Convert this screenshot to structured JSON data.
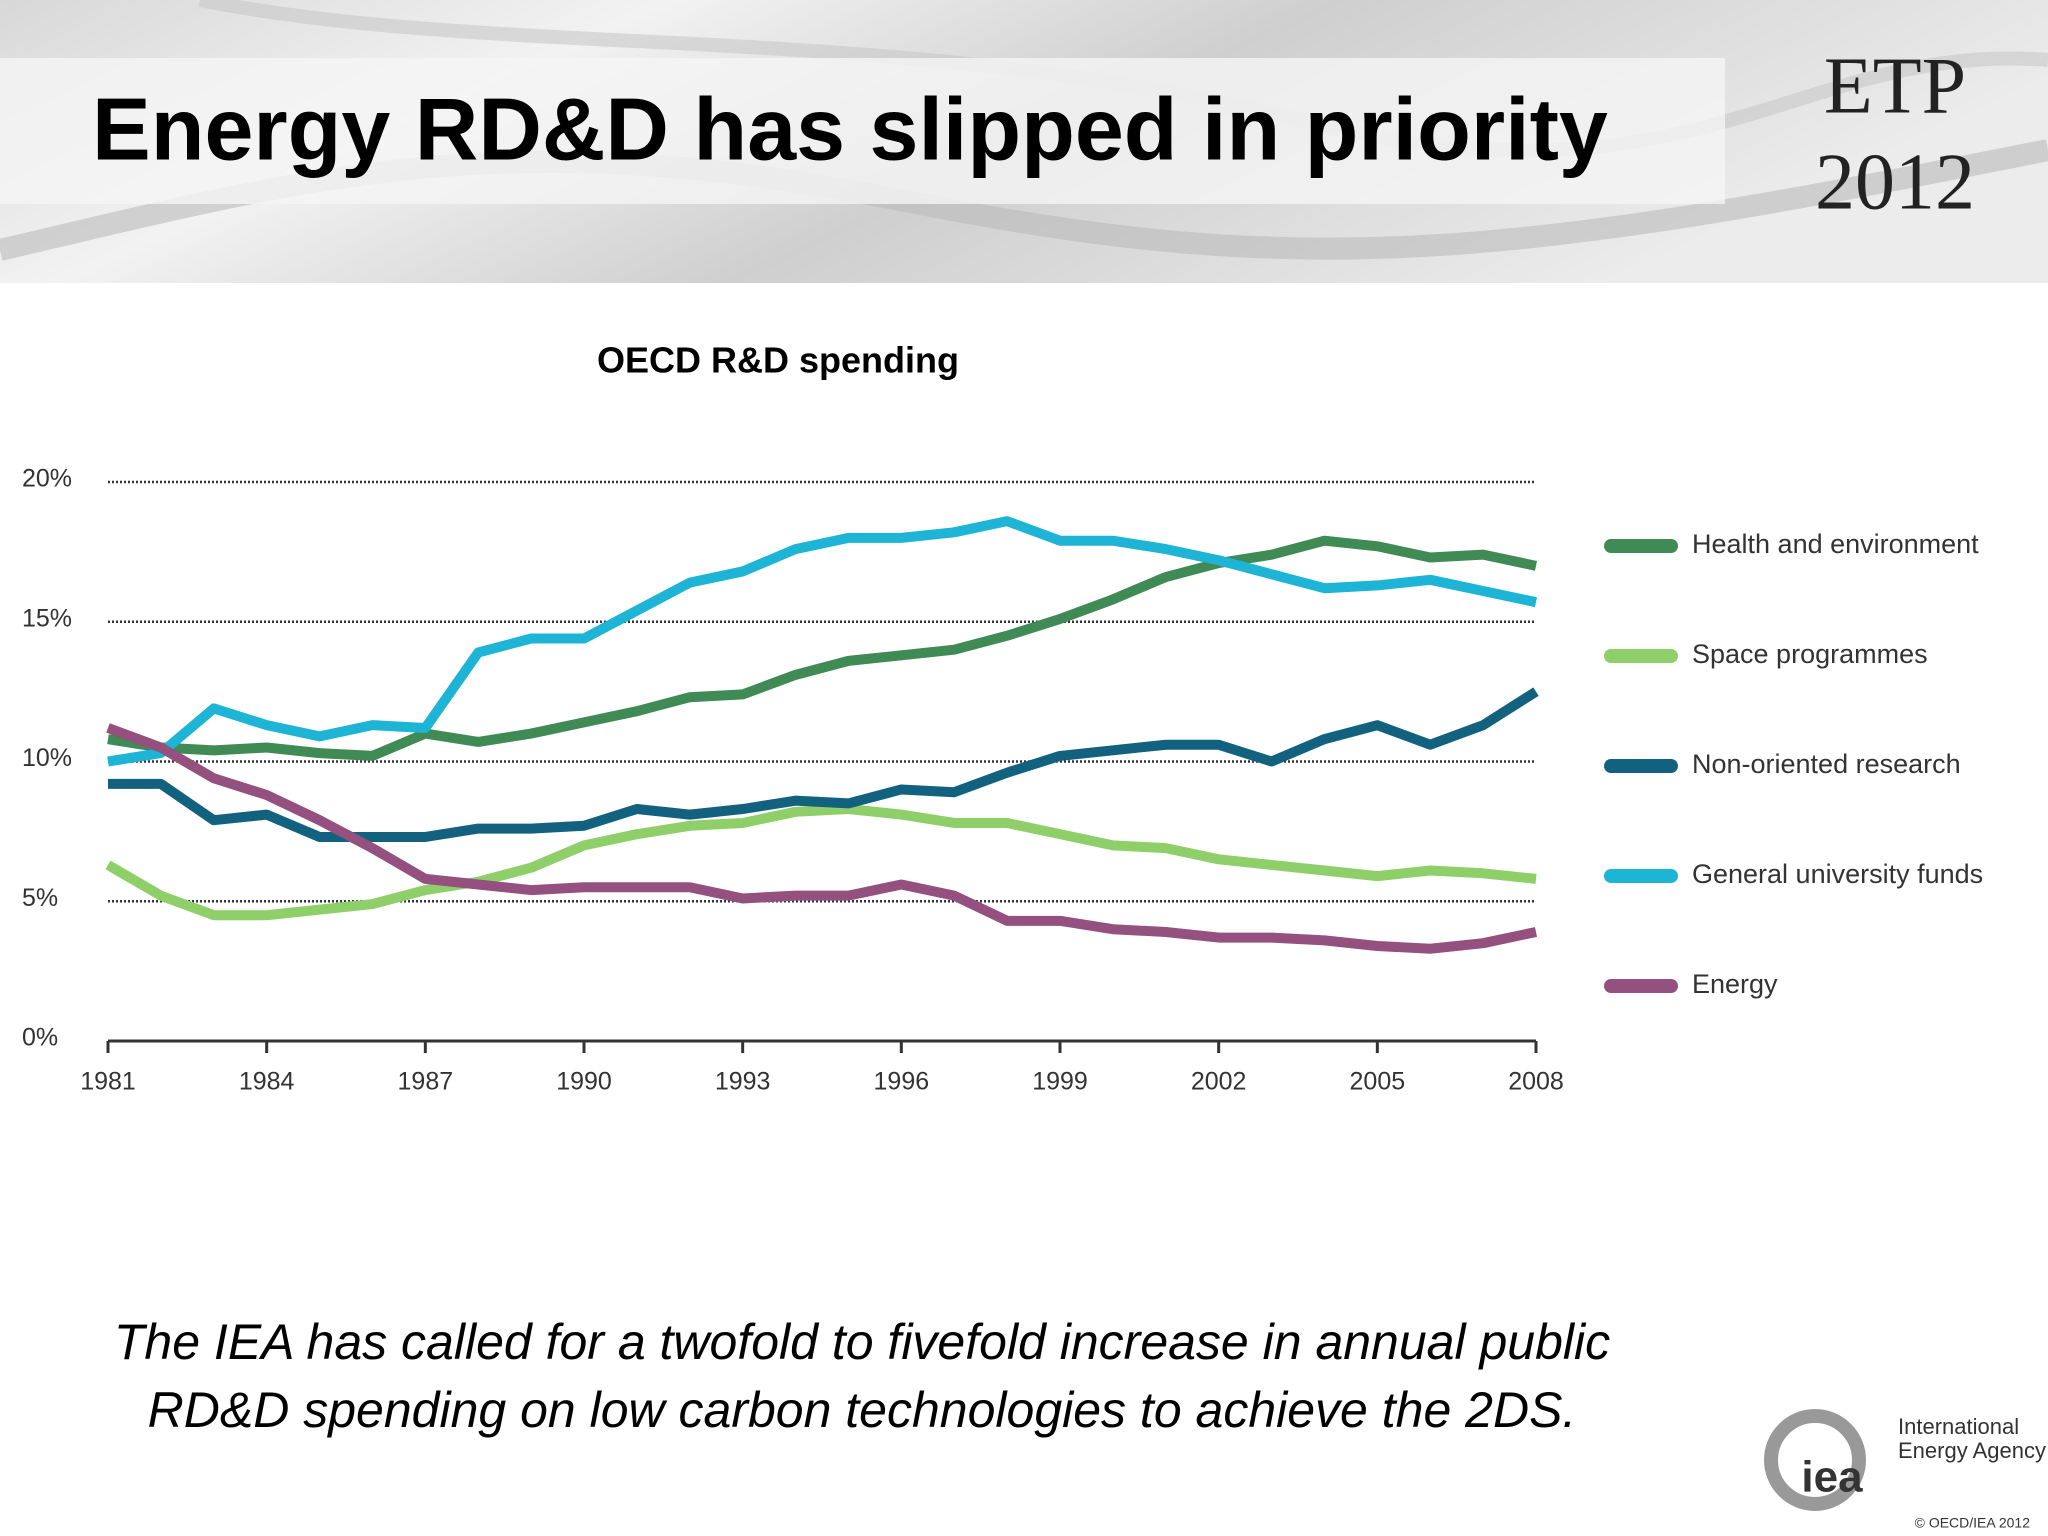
{
  "slide_title": "Energy RD&D has slipped in priority",
  "badge": {
    "line1": "ETP",
    "line2": "2012"
  },
  "chart_data": {
    "type": "line",
    "title": "OECD R&D spending",
    "x": [
      1981,
      1982,
      1983,
      1984,
      1985,
      1986,
      1987,
      1988,
      1989,
      1990,
      1991,
      1992,
      1993,
      1994,
      1995,
      1996,
      1997,
      1998,
      1999,
      2000,
      2001,
      2002,
      2003,
      2004,
      2005,
      2006,
      2007,
      2008
    ],
    "series": [
      {
        "name": "Health and environment",
        "color": "#3f8a55",
        "values": [
          10.8,
          10.5,
          10.4,
          10.5,
          10.3,
          10.2,
          11.0,
          10.7,
          11.0,
          11.4,
          11.8,
          12.3,
          12.4,
          13.1,
          13.6,
          13.8,
          14.0,
          14.5,
          15.1,
          15.8,
          16.6,
          17.1,
          17.4,
          17.9,
          17.7,
          17.3,
          17.4,
          17.0
        ]
      },
      {
        "name": "Space programmes",
        "color": "#8fcf6a",
        "values": [
          6.3,
          5.2,
          4.5,
          4.5,
          4.7,
          4.9,
          5.4,
          5.7,
          6.2,
          7.0,
          7.4,
          7.7,
          7.8,
          8.2,
          8.3,
          8.1,
          7.8,
          7.8,
          7.4,
          7.0,
          6.9,
          6.5,
          6.3,
          6.1,
          5.9,
          6.1,
          6.0,
          5.8
        ]
      },
      {
        "name": "Non-oriented research",
        "color": "#12627f",
        "values": [
          9.2,
          9.2,
          7.9,
          8.1,
          7.3,
          7.3,
          7.3,
          7.6,
          7.6,
          7.7,
          8.3,
          8.1,
          8.3,
          8.6,
          8.5,
          9.0,
          8.9,
          9.6,
          10.2,
          10.4,
          10.6,
          10.6,
          10.0,
          10.8,
          11.3,
          10.6,
          11.3,
          12.5
        ]
      },
      {
        "name": "General university funds",
        "color": "#1db4d6",
        "values": [
          10.0,
          10.3,
          11.9,
          11.3,
          10.9,
          11.3,
          11.2,
          13.9,
          14.4,
          14.4,
          15.4,
          16.4,
          16.8,
          17.6,
          18.0,
          18.0,
          18.2,
          18.6,
          17.9,
          17.9,
          17.6,
          17.2,
          16.7,
          16.2,
          16.3,
          16.5,
          16.1,
          15.7
        ]
      },
      {
        "name": "Energy",
        "color": "#94507e",
        "values": [
          11.2,
          10.5,
          9.4,
          8.8,
          7.9,
          6.9,
          5.8,
          5.6,
          5.4,
          5.5,
          5.5,
          5.5,
          5.1,
          5.2,
          5.2,
          5.6,
          5.2,
          4.3,
          4.3,
          4.0,
          3.9,
          3.7,
          3.7,
          3.6,
          3.4,
          3.3,
          3.5,
          3.9
        ]
      }
    ],
    "xlim": [
      1981,
      2008
    ],
    "xticks": [
      1981,
      1984,
      1987,
      1990,
      1993,
      1996,
      1999,
      2002,
      2005,
      2008
    ],
    "ylim": [
      0,
      20
    ],
    "yticks": [
      {
        "value": 0,
        "label": "0%"
      },
      {
        "value": 5,
        "label": "5%"
      },
      {
        "value": 10,
        "label": "10%"
      },
      {
        "value": 15,
        "label": "15%"
      },
      {
        "value": 20,
        "label": "20%"
      }
    ],
    "grid": true,
    "legend": "right"
  },
  "caption": [
    "The IEA has called for a twofold  to fivefold increase in annual public",
    "RD&D spending on low carbon technologies to achieve the 2DS."
  ],
  "logo": {
    "mark": "iea",
    "line1": "International",
    "line2": "Energy Agency"
  },
  "copyright": "© OECD/IEA 2012"
}
